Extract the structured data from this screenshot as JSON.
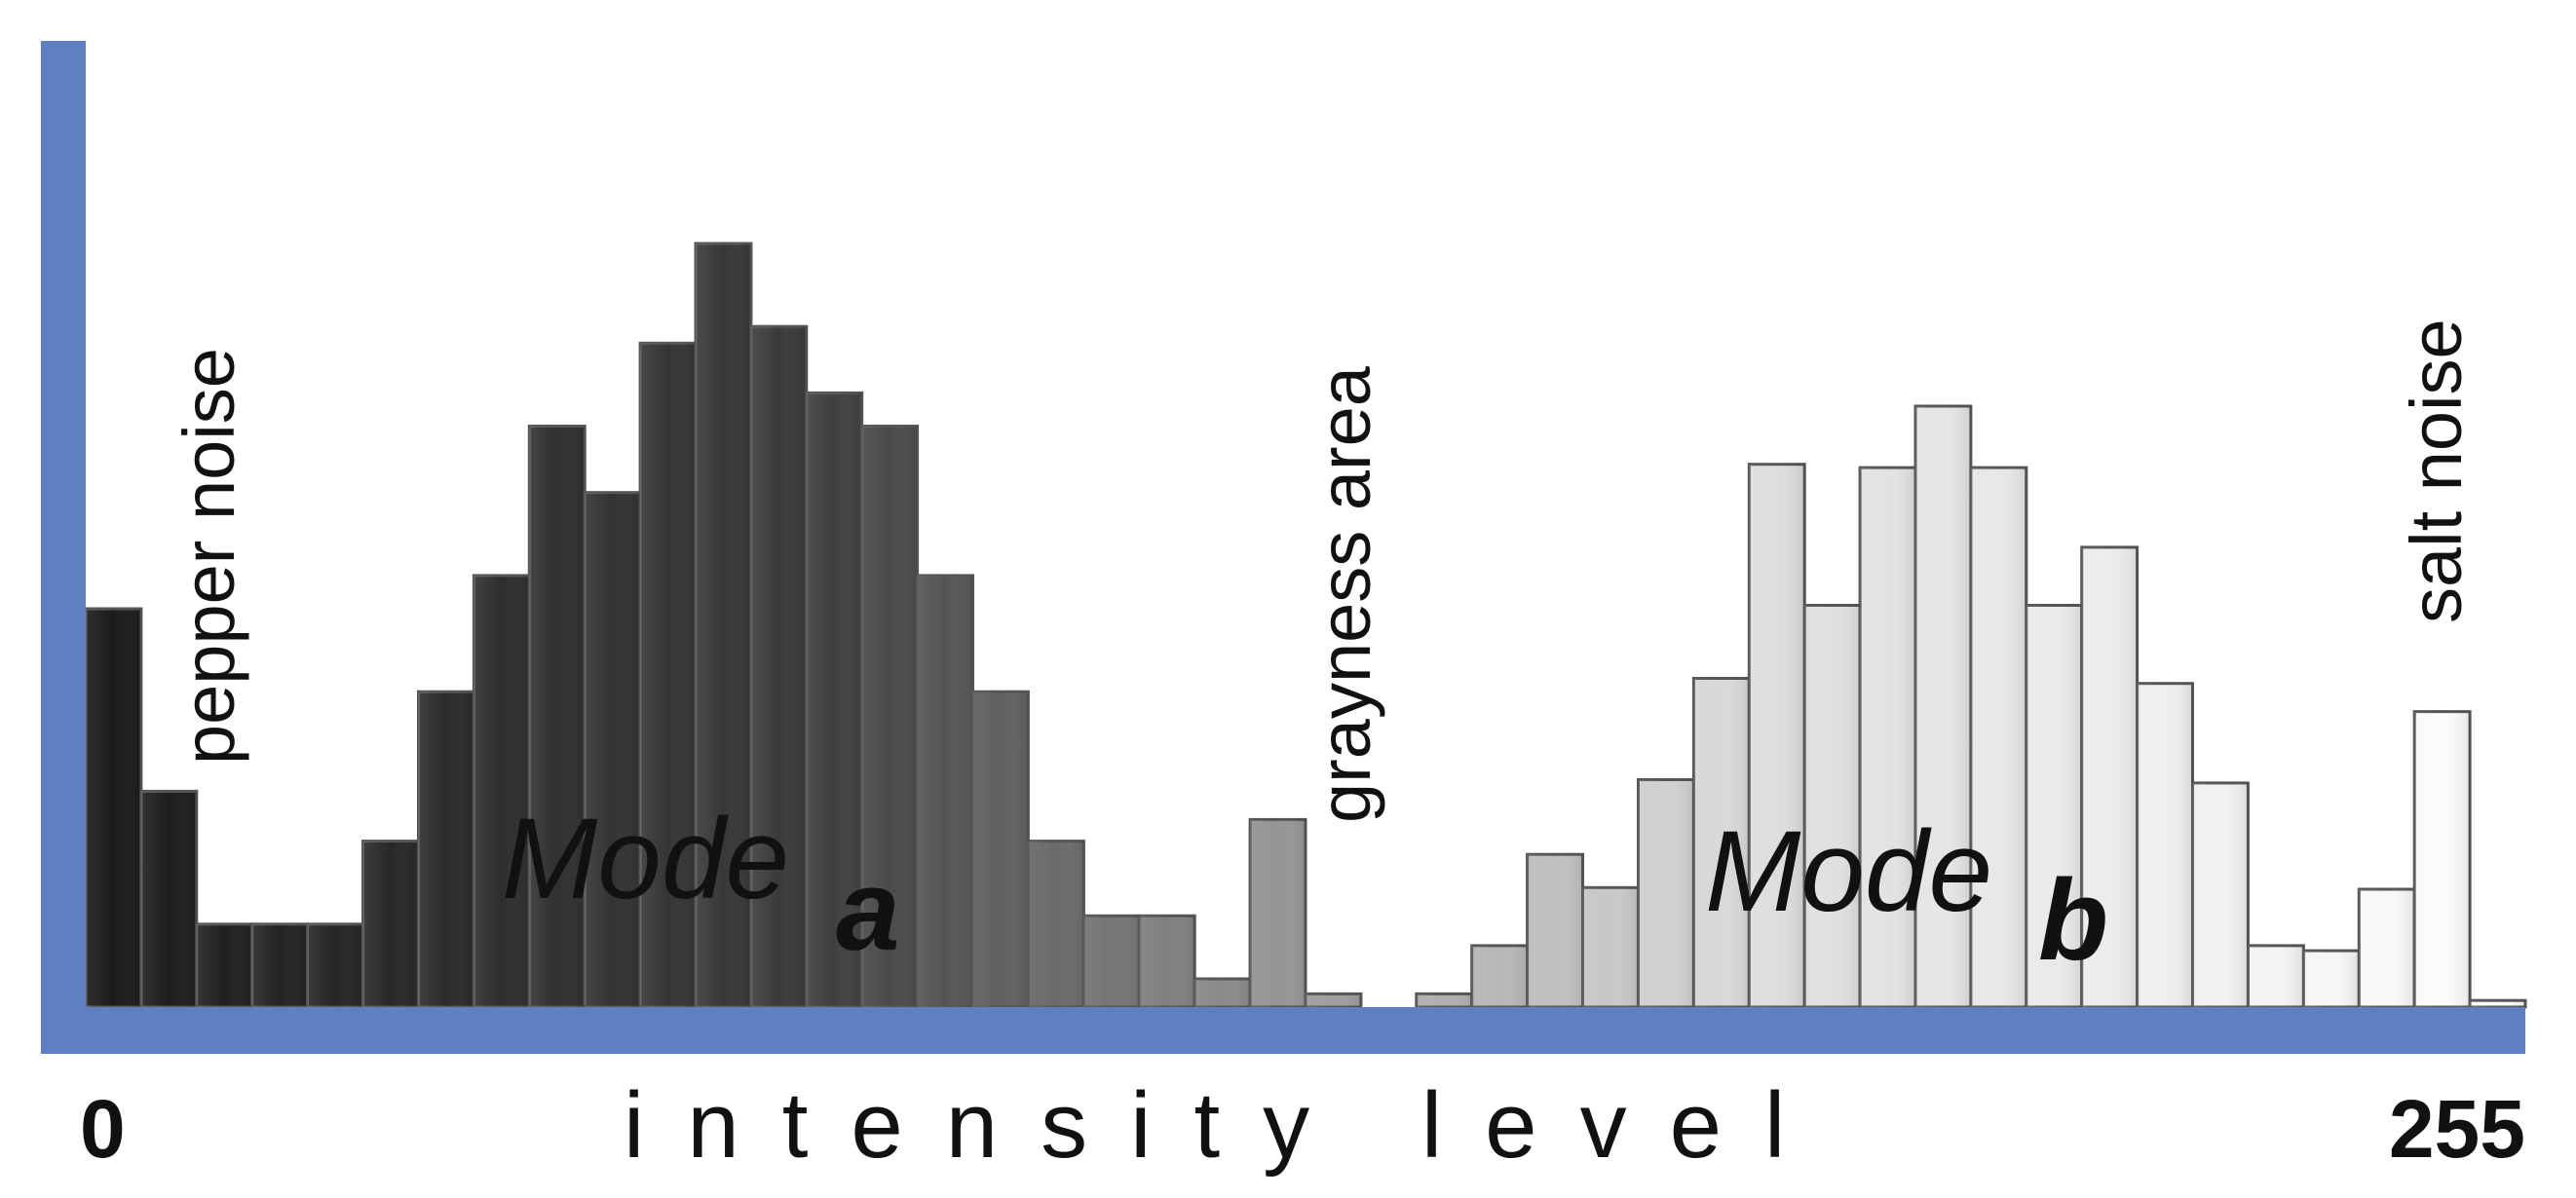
{
  "chart_data": {
    "type": "bar",
    "xlabel": "intensity level",
    "xlim": [
      0,
      255
    ],
    "x_tick_labels": [
      "0",
      "255"
    ],
    "values": [
      24,
      13,
      5,
      5,
      5,
      10,
      19,
      26,
      35,
      31,
      40,
      46,
      41,
      37,
      35,
      26,
      19,
      10,
      5.5,
      5.5,
      1.7,
      11.3,
      0.8,
      0,
      0.8,
      3.7,
      9.2,
      7.2,
      13.7,
      19.8,
      32.7,
      24.2,
      32.5,
      36.2,
      32.5,
      24.2,
      27.7,
      19.5,
      13.5,
      3.7,
      3.4,
      7.1,
      17.8,
      0.4
    ],
    "annotations": {
      "pepper": "pepper noise",
      "grayness": "grayness area",
      "salt": "salt noise",
      "mode_a": "Mode",
      "mode_a_sub": "a",
      "mode_b": "Mode",
      "mode_b_sub": "b"
    },
    "colors": {
      "axis": "#5f7fc3",
      "bar_dark": "#1a1a1a",
      "bar_light": "#ffffff",
      "outline": "#555555",
      "mode_a_text": "#ffffff",
      "mode_b_text": "#1a1414"
    }
  }
}
